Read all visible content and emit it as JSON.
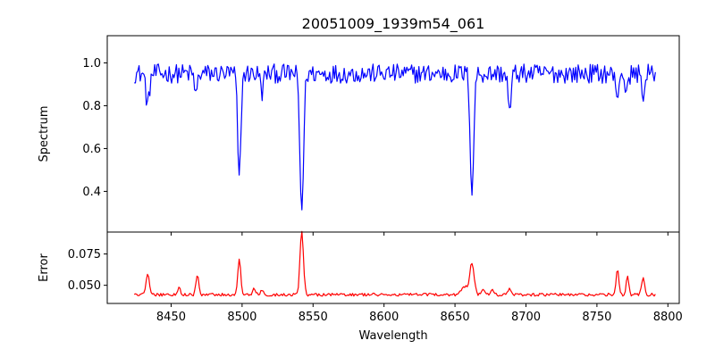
{
  "title": "20051009_1939m54_061",
  "chart_data": [
    {
      "type": "line",
      "panel": "top",
      "title": "20051009_1939m54_061",
      "xlabel": "",
      "ylabel": "Spectrum",
      "xlim": [
        8405,
        8808
      ],
      "ylim": [
        0.21,
        1.127
      ],
      "xticks": [
        8450,
        8500,
        8550,
        8600,
        8650,
        8700,
        8750,
        8800
      ],
      "yticks": [
        0.4,
        0.6,
        0.8,
        1.0
      ],
      "ytick_labels": [
        "0.4",
        "0.6",
        "0.8",
        "1.0"
      ],
      "grid": false,
      "color": "#0000ff",
      "x_range": [
        8424,
        8792
      ],
      "continuum": 0.95,
      "features": [
        {
          "center": 8433.5,
          "depth": 0.15,
          "width": 1.2
        },
        {
          "center": 8467.5,
          "depth": 0.1,
          "width": 1.0
        },
        {
          "center": 8498.0,
          "depth": 0.5,
          "width": 1.1
        },
        {
          "center": 8514.0,
          "depth": 0.09,
          "width": 1.0
        },
        {
          "center": 8542.0,
          "depth": 0.64,
          "width": 1.3
        },
        {
          "center": 8662.0,
          "depth": 0.56,
          "width": 1.2
        },
        {
          "center": 8688.5,
          "depth": 0.19,
          "width": 1.0
        },
        {
          "center": 8764.0,
          "depth": 0.12,
          "width": 1.0
        },
        {
          "center": 8771.0,
          "depth": 0.1,
          "width": 1.0
        },
        {
          "center": 8783.0,
          "depth": 0.11,
          "width": 1.0
        }
      ],
      "noise_amplitude": 0.045
    },
    {
      "type": "line",
      "panel": "bottom",
      "title": "",
      "xlabel": "Wavelength",
      "ylabel": "Error",
      "xlim": [
        8405,
        8808
      ],
      "ylim": [
        0.0355,
        0.0925
      ],
      "xticks": [
        8450,
        8500,
        8550,
        8600,
        8650,
        8700,
        8750,
        8800
      ],
      "xtick_labels": [
        "8450",
        "8500",
        "8550",
        "8600",
        "8650",
        "8700",
        "8750",
        "8800"
      ],
      "yticks": [
        0.05,
        0.075
      ],
      "ytick_labels": [
        "0.050",
        "0.075"
      ],
      "grid": false,
      "color": "#ff0000",
      "x_range": [
        8424,
        8792
      ],
      "baseline": 0.0425,
      "features": [
        {
          "center": 8433.5,
          "height": 0.016,
          "width": 1.2
        },
        {
          "center": 8455.5,
          "height": 0.006,
          "width": 1.0
        },
        {
          "center": 8468.5,
          "height": 0.015,
          "width": 1.0
        },
        {
          "center": 8498.0,
          "height": 0.028,
          "width": 1.0
        },
        {
          "center": 8508.5,
          "height": 0.005,
          "width": 1.0
        },
        {
          "center": 8514.0,
          "height": 0.003,
          "width": 1.0
        },
        {
          "center": 8542.0,
          "height": 0.05,
          "width": 1.2
        },
        {
          "center": 8657.0,
          "height": 0.006,
          "width": 2.5
        },
        {
          "center": 8662.0,
          "height": 0.025,
          "width": 1.5
        },
        {
          "center": 8670.0,
          "height": 0.005,
          "width": 1.2
        },
        {
          "center": 8676.0,
          "height": 0.004,
          "width": 1.2
        },
        {
          "center": 8688.5,
          "height": 0.005,
          "width": 1.0
        },
        {
          "center": 8764.5,
          "height": 0.021,
          "width": 0.9
        },
        {
          "center": 8771.5,
          "height": 0.014,
          "width": 0.9
        },
        {
          "center": 8782.5,
          "height": 0.014,
          "width": 1.0
        }
      ],
      "noise_amplitude": 0.0012
    }
  ]
}
